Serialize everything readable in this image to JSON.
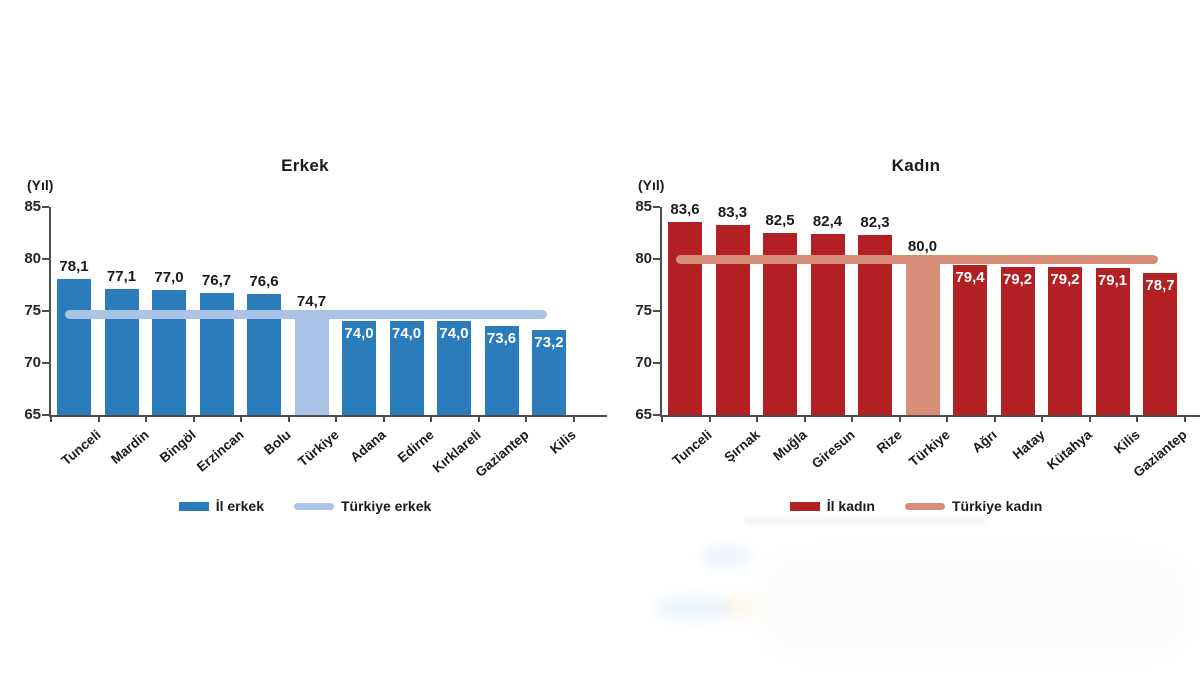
{
  "chart_data": [
    {
      "type": "bar",
      "title": "Erkek",
      "ylabel": "(Yıl)",
      "ylim": [
        65,
        85
      ],
      "yticks": [
        65,
        70,
        75,
        80,
        85
      ],
      "categories": [
        "Tunceli",
        "Mardin",
        "Bingöl",
        "Erzincan",
        "Bolu",
        "Türkiye",
        "Adana",
        "Edirne",
        "Kırklareli",
        "Gaziantep",
        "Kilis"
      ],
      "values": [
        78.1,
        77.1,
        77.0,
        76.7,
        76.6,
        74.7,
        74.0,
        74.0,
        74.0,
        73.6,
        73.2
      ],
      "value_labels": [
        "78,1",
        "77,1",
        "77,0",
        "76,7",
        "76,6",
        "74,7",
        "74,0",
        "74,0",
        "74,0",
        "73,6",
        "73,2"
      ],
      "highlight_index": 5,
      "highlight_category": "Türkiye",
      "reference_line": {
        "value": 74.7,
        "label": "Türkiye erkek"
      },
      "legend": [
        {
          "swatch": "bar",
          "label": "İl erkek"
        },
        {
          "swatch": "line",
          "label": "Türkiye erkek"
        }
      ],
      "colors": {
        "bar": "#2b7cbb",
        "highlight": "#aac3e6",
        "line": "#aac3e6"
      },
      "grid": false,
      "legend_position": "bottom"
    },
    {
      "type": "bar",
      "title": "Kadın",
      "ylabel": "(Yıl)",
      "ylim": [
        65,
        85
      ],
      "yticks": [
        65,
        70,
        75,
        80,
        85
      ],
      "categories": [
        "Tunceli",
        "Şırnak",
        "Muğla",
        "Giresun",
        "Rize",
        "Türkiye",
        "Ağrı",
        "Hatay",
        "Kütahya",
        "Kilis",
        "Gaziantep"
      ],
      "values": [
        83.6,
        83.3,
        82.5,
        82.4,
        82.3,
        80.0,
        79.4,
        79.2,
        79.2,
        79.1,
        78.7
      ],
      "value_labels": [
        "83,6",
        "83,3",
        "82,5",
        "82,4",
        "82,3",
        "80,0",
        "79,4",
        "79,2",
        "79,2",
        "79,1",
        "78,7"
      ],
      "highlight_index": 5,
      "highlight_category": "Türkiye",
      "reference_line": {
        "value": 80.0,
        "label": "Türkiye kadın"
      },
      "legend": [
        {
          "swatch": "bar",
          "label": "İl kadın"
        },
        {
          "swatch": "line",
          "label": "Türkiye kadın"
        }
      ],
      "colors": {
        "bar": "#b22024",
        "highlight": "#d88d79",
        "line": "#d88d79"
      },
      "grid": false,
      "legend_position": "bottom"
    }
  ]
}
